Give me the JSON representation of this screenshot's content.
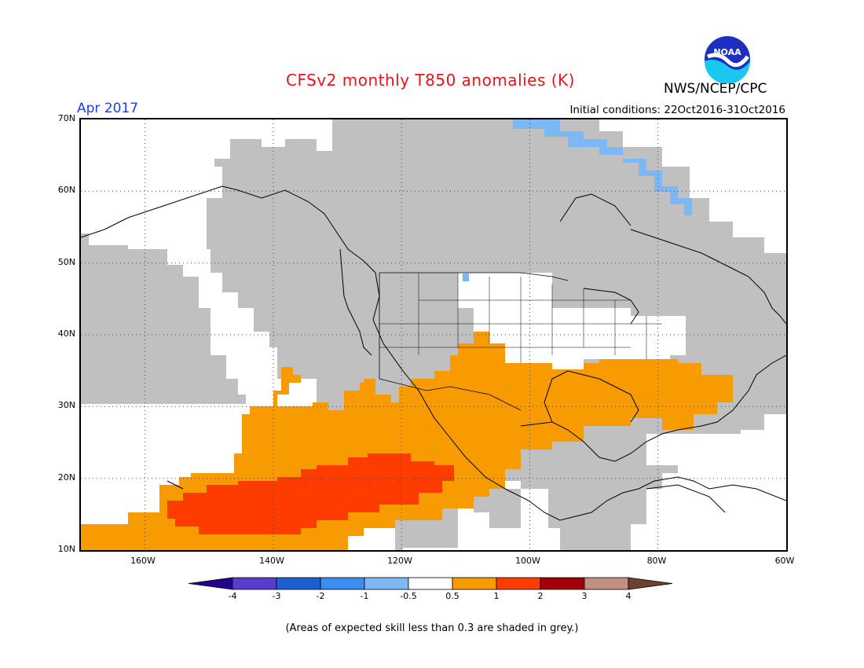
{
  "title": "CFSv2 monthly T850 anomalies (K)",
  "period": "Apr 2017",
  "initial_conditions": "Initial conditions: 22Oct2016-31Oct2016",
  "agency": "NWS/NCEP/CPC",
  "logo_text": "NOAA",
  "lat_labels": [
    "70N",
    "60N",
    "50N",
    "40N",
    "30N",
    "20N",
    "10N"
  ],
  "lon_labels": [
    "160W",
    "140W",
    "120W",
    "100W",
    "80W",
    "60W"
  ],
  "colorbar": {
    "tick_labels": [
      "-4",
      "-3",
      "-2",
      "-1",
      "-0.5",
      "0.5",
      "1",
      "2",
      "3",
      "4"
    ],
    "colors": [
      "#24008c",
      "#5a3ccc",
      "#1c5fd0",
      "#3a8ef0",
      "#7db8f4",
      "#ffffff",
      "#f79b00",
      "#ff3c00",
      "#a0000a",
      "#c09080",
      "#6a4232"
    ]
  },
  "footnote": "(Areas of expected skill less than 0.3 are shaded in grey.)"
}
